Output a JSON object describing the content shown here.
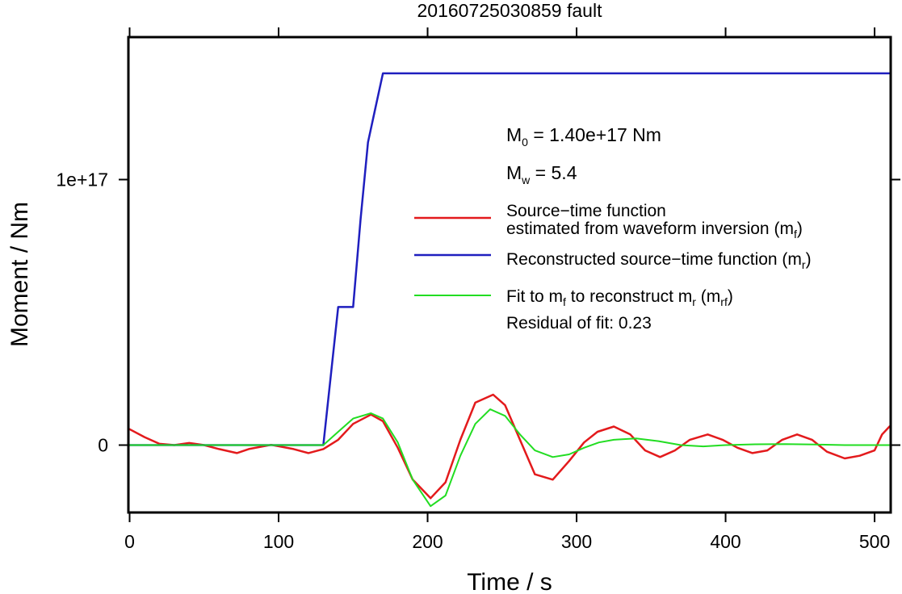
{
  "chart_data": {
    "type": "line",
    "title": "20160725030859 fault",
    "xlabel": "Time / s",
    "ylabel": "Moment / Nm",
    "xlim": [
      0,
      510
    ],
    "ylim": [
      -2.5e+16,
      1.55e+17
    ],
    "x_ticks": [
      {
        "value": 0,
        "label": "0"
      },
      {
        "value": 100,
        "label": "100"
      },
      {
        "value": 200,
        "label": "200"
      },
      {
        "value": 300,
        "label": "300"
      },
      {
        "value": 400,
        "label": "400"
      },
      {
        "value": 500,
        "label": "500"
      }
    ],
    "y_ticks": [
      {
        "value": 0,
        "label": "0"
      },
      {
        "value": 1e+17,
        "label": "1e+17"
      }
    ],
    "grid": false,
    "annotations": {
      "m0_sym": "M",
      "m0_sub": "0",
      "m0_text": " = 1.40e+17 Nm",
      "mw_sym": "M",
      "mw_sub": "w",
      "mw_text": " = 5.4",
      "residual": "Residual of fit: 0.23"
    },
    "legend": {
      "position": "right",
      "items": [
        {
          "color": "#e31a1c",
          "lines": [
            [
              {
                "t": "Source−time function"
              }
            ],
            [
              {
                "t": "estimated from waveform inversion (m"
              },
              {
                "t": "f",
                "sub": true
              },
              {
                "t": ")"
              }
            ]
          ]
        },
        {
          "color": "#1f1fbf",
          "lines": [
            [
              {
                "t": "Reconstructed source−time function (m"
              },
              {
                "t": "r",
                "sub": true
              },
              {
                "t": ")"
              }
            ]
          ]
        },
        {
          "color": "#22dd22",
          "lines": [
            [
              {
                "t": "Fit to m"
              },
              {
                "t": "f",
                "sub": true
              },
              {
                "t": " to reconstruct m"
              },
              {
                "t": "r",
                "sub": true
              },
              {
                "t": " (m"
              },
              {
                "t": "rf",
                "sub": true
              },
              {
                "t": ")"
              }
            ]
          ]
        }
      ]
    },
    "series": [
      {
        "key": "mf",
        "color": "#e31a1c",
        "width": 2.5,
        "x": [
          0,
          10,
          20,
          30,
          40,
          50,
          60,
          72,
          80,
          95,
          110,
          120,
          130,
          140,
          150,
          162,
          170,
          180,
          190,
          202,
          212,
          222,
          232,
          244,
          252,
          262,
          272,
          284,
          295,
          305,
          314,
          325,
          336,
          346,
          356,
          366,
          376,
          388,
          398,
          408,
          418,
          428,
          438,
          448,
          458,
          468,
          480,
          490,
          500,
          505,
          510
        ],
        "y": [
          6000000000000000.0,
          3000000000000000.0,
          500000000000000.0,
          0,
          800000000000000.0,
          0,
          -1500000000000000.0,
          -3000000000000000.0,
          -1500000000000000.0,
          100000000000000.0,
          -1500000000000000.0,
          -3000000000000000.0,
          -1500000000000000.0,
          2000000000000000.0,
          8000000000000000.0,
          1.15e+16,
          9000000000000000.0,
          -1000000000000000.0,
          -1.3e+16,
          -2e+16,
          -1.4e+16,
          2000000000000000.0,
          1.6e+16,
          1.9e+16,
          1.5e+16,
          2000000000000000.0,
          -1.1e+16,
          -1.3e+16,
          -6000000000000000.0,
          1000000000000000.0,
          5000000000000000.0,
          7000000000000000.0,
          4000000000000000.0,
          -2000000000000000.0,
          -4500000000000000.0,
          -2000000000000000.0,
          2000000000000000.0,
          4000000000000000.0,
          2000000000000000.0,
          -1000000000000000.0,
          -3000000000000000.0,
          -2000000000000000.0,
          2000000000000000.0,
          4000000000000000.0,
          2000000000000000.0,
          -2500000000000000.0,
          -5000000000000000.0,
          -4000000000000000.0,
          -2000000000000000.0,
          4000000000000000.0,
          7000000000000000.0
        ]
      },
      {
        "key": "mr",
        "color": "#1f1fbf",
        "width": 2.5,
        "x": [
          0,
          130,
          140,
          150,
          155,
          160,
          165,
          170,
          510
        ],
        "y": [
          0,
          0,
          5.2e+16,
          5.2e+16,
          8.5e+16,
          1.14e+17,
          1.27e+17,
          1.4e+17,
          1.4e+17
        ]
      },
      {
        "key": "mrf",
        "color": "#22dd22",
        "width": 2,
        "x": [
          0,
          50,
          100,
          130,
          140,
          150,
          162,
          170,
          180,
          190,
          202,
          212,
          222,
          232,
          242,
          252,
          262,
          272,
          284,
          295,
          305,
          315,
          325,
          340,
          355,
          370,
          385,
          400,
          420,
          440,
          460,
          480,
          500,
          510
        ],
        "y": [
          0,
          0,
          0,
          0,
          5000000000000000.0,
          1e+16,
          1.2e+16,
          1e+16,
          1000000000000000.0,
          -1.3e+16,
          -2.3e+16,
          -1.9e+16,
          -4000000000000000.0,
          8000000000000000.0,
          1.35e+16,
          1.1e+16,
          4000000000000000.0,
          -2000000000000000.0,
          -4500000000000000.0,
          -3500000000000000.0,
          -1000000000000000.0,
          1000000000000000.0,
          2000000000000000.0,
          2500000000000000.0,
          1500000000000000.0,
          0,
          -500000000000000.0,
          0,
          300000000000000.0,
          400000000000000.0,
          200000000000000.0,
          0,
          0,
          0
        ]
      }
    ]
  }
}
